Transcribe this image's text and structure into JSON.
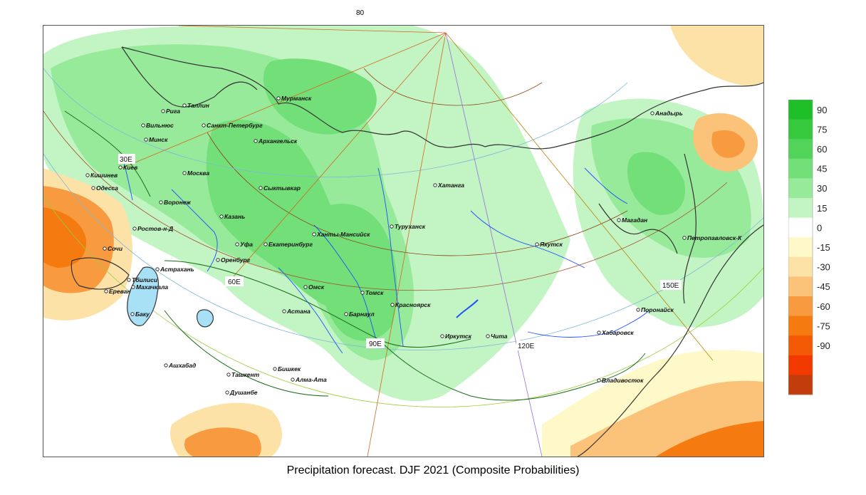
{
  "top_label": "80",
  "caption": "Precipitation forecast. DJF 2021 (Composite Probabilities)",
  "gridline_labels": {
    "lon_30": "30E",
    "lon_60": "60E",
    "lon_90": "90E",
    "lon_120": "120E",
    "lon_150": "150E"
  },
  "colorbar": {
    "labels": [
      "90",
      "75",
      "60",
      "45",
      "30",
      "15",
      "0",
      "-15",
      "-30",
      "-45",
      "-60",
      "-75",
      "-90"
    ],
    "colors": [
      "#1fbf2a",
      "#36c93e",
      "#52d45a",
      "#73df79",
      "#98ea9b",
      "#c3f4c3",
      "#ffffff",
      "#fff8c8",
      "#fde2a8",
      "#fbc27a",
      "#f89a40",
      "#f57a10",
      "#f45a05",
      "#f23a00",
      "#c23c0c"
    ]
  },
  "cities": [
    {
      "name": "Мурманск"
    },
    {
      "name": "Рига"
    },
    {
      "name": "Таллин"
    },
    {
      "name": "Вильнюс"
    },
    {
      "name": "Санкт-Петербург"
    },
    {
      "name": "Минск"
    },
    {
      "name": "Архангельск"
    },
    {
      "name": "Киев"
    },
    {
      "name": "Москва"
    },
    {
      "name": "Кишинев"
    },
    {
      "name": "Одесса"
    },
    {
      "name": "Сыктывкар"
    },
    {
      "name": "Воронеж"
    },
    {
      "name": "Казань"
    },
    {
      "name": "Ростов-н-Д"
    },
    {
      "name": "Ханты-Мансийск"
    },
    {
      "name": "Уфа"
    },
    {
      "name": "Екатеринбург"
    },
    {
      "name": "Сочи"
    },
    {
      "name": "Оренбург"
    },
    {
      "name": "Астрахань"
    },
    {
      "name": "Тбилиси"
    },
    {
      "name": "Махачкала"
    },
    {
      "name": "Ереван"
    },
    {
      "name": "Омск"
    },
    {
      "name": "Астана"
    },
    {
      "name": "Томск"
    },
    {
      "name": "Баку"
    },
    {
      "name": "Барнаул"
    },
    {
      "name": "Красноярск"
    },
    {
      "name": "Хатанга"
    },
    {
      "name": "Туруханск"
    },
    {
      "name": "Якутск"
    },
    {
      "name": "Иркутск"
    },
    {
      "name": "Чита"
    },
    {
      "name": "Ашхабад"
    },
    {
      "name": "Бишкек"
    },
    {
      "name": "Ташкент"
    },
    {
      "name": "Алма-Ата"
    },
    {
      "name": "Душанбе"
    },
    {
      "name": "Анадырь"
    },
    {
      "name": "Магадан"
    },
    {
      "name": "Петропавловск-К"
    },
    {
      "name": "Поронайск"
    },
    {
      "name": "Хабаровск"
    },
    {
      "name": "Владивосток"
    }
  ]
}
